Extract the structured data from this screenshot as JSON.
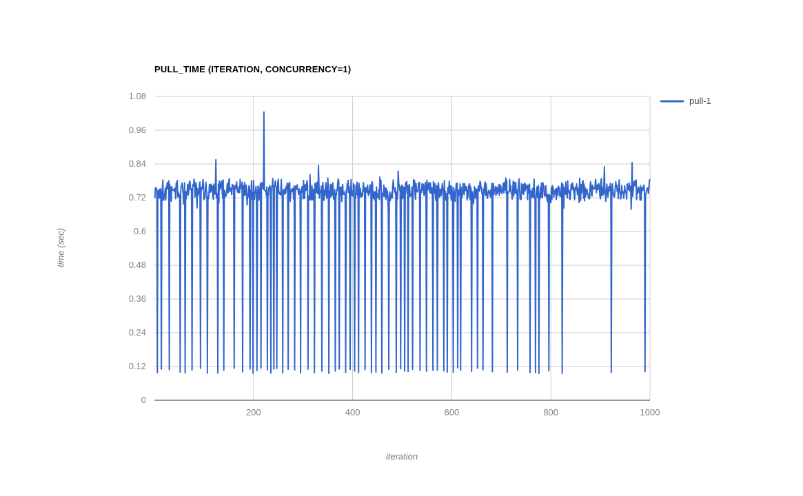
{
  "chart_data": {
    "type": "line",
    "title": "PULL_TIME (ITERATION, CONCURRENCY=1)",
    "xlabel": "iteration",
    "ylabel": "time (sec)",
    "xlim": [
      0,
      1000
    ],
    "ylim": [
      0,
      1.08
    ],
    "xticks": [
      200,
      400,
      600,
      800,
      1000
    ],
    "xtick_labels": [
      "200",
      "400",
      "600",
      "800",
      "1000"
    ],
    "yticks": [
      0,
      0.12,
      0.24,
      0.36,
      0.48,
      0.6,
      0.72,
      0.84,
      0.96,
      1.08
    ],
    "ytick_labels": [
      "0",
      "0.12",
      "0.24",
      "0.36",
      "0.48",
      "0.6",
      "0.72",
      "0.84",
      "0.96",
      "1.08"
    ],
    "grid": true,
    "legend_position": "right",
    "series": [
      {
        "name": "pull-1",
        "color": "#3366cc",
        "points": 1000,
        "baseline_mean": 0.748,
        "baseline_noise": [
          0.06,
          0.03
        ],
        "extra_noise": {
          "down_prob": 0.05,
          "down_max": 0.05,
          "up_prob": 0.03,
          "up_max": 0.04
        },
        "seed": 1337,
        "dip_value": 0.105,
        "dip_jitter": 0.02,
        "dips_at_iterations": [
          6,
          14,
          30,
          52,
          62,
          76,
          93,
          107,
          128,
          140,
          161,
          178,
          193,
          199,
          207,
          215,
          228,
          235,
          241,
          247,
          259,
          270,
          283,
          295,
          310,
          323,
          338,
          352,
          365,
          373,
          386,
          395,
          404,
          412,
          425,
          438,
          447,
          459,
          473,
          488,
          497,
          505,
          512,
          521,
          536,
          549,
          562,
          571,
          584,
          591,
          603,
          612,
          618,
          640,
          652,
          663,
          682,
          712,
          733,
          758,
          769,
          776,
          796,
          823,
          922,
          990
        ],
        "spikes": [
          [
            124,
            0.855
          ],
          [
            221,
            1.025
          ],
          [
            331,
            0.835
          ],
          [
            492,
            0.815
          ],
          [
            908,
            0.83
          ],
          [
            964,
            0.845
          ]
        ]
      }
    ]
  },
  "colors": {
    "background": "#ffffff",
    "gridline": "#cccccc",
    "axis_line": "#333333",
    "tick_text": "#808080",
    "title_text": "#000000",
    "axis_title_text": "#757575",
    "legend_text": "#424242",
    "series_blue": "#3366cc"
  }
}
